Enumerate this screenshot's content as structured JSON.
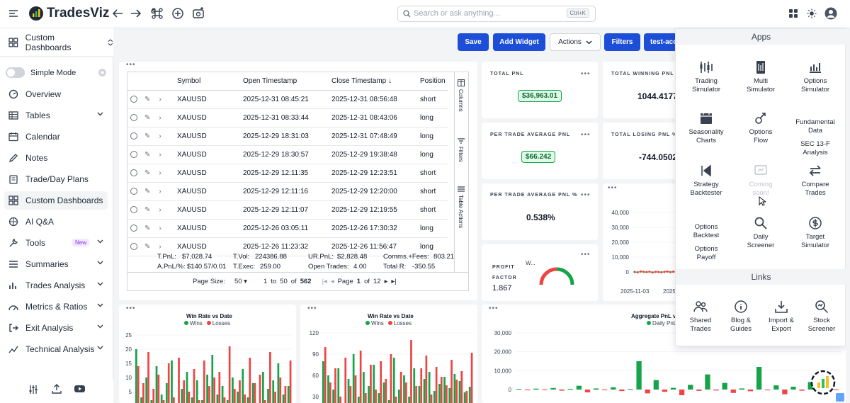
{
  "topbar": {
    "logo_text": "TradesViz",
    "search_placeholder": "Search or ask anything...",
    "search_shortcut": "Ctrl+K"
  },
  "dashboard": {
    "label": "Custom Dashboards"
  },
  "sidebar": {
    "simple_mode": "Simple Mode",
    "items": [
      {
        "label": "Overview",
        "icon": "overview-icon"
      },
      {
        "label": "Tables",
        "icon": "table-icon",
        "chevron": true
      },
      {
        "label": "Calendar",
        "icon": "calendar-icon"
      },
      {
        "label": "Notes",
        "icon": "notes-icon"
      },
      {
        "label": "Trade/Day Plans",
        "icon": "plans-icon"
      },
      {
        "label": "Custom Dashboards",
        "icon": "dashboard-icon",
        "active": true
      },
      {
        "label": "AI Q&A",
        "icon": "ai-icon"
      },
      {
        "label": "Tools",
        "icon": "tools-icon",
        "badge": "New",
        "chevron": true
      },
      {
        "label": "Summaries",
        "icon": "summaries-icon",
        "chevron": true
      },
      {
        "label": "Trades Analysis",
        "icon": "trades-analysis-icon",
        "chevron": true
      },
      {
        "label": "Metrics & Ratios",
        "icon": "metrics-icon",
        "chevron": true
      },
      {
        "label": "Exit Analysis",
        "icon": "exit-icon",
        "chevron": true
      },
      {
        "label": "Technical Analysis",
        "icon": "technical-icon",
        "chevron": true
      }
    ]
  },
  "toolbar": {
    "save": "Save",
    "add_widget": "Add Widget",
    "actions": "Actions",
    "filters": "Filters",
    "account": "test-acc"
  },
  "trades_table": {
    "columns": [
      "Symbol",
      "Open Timestamp",
      "Close Timestamp",
      "Position"
    ],
    "rows": [
      {
        "symbol": "XAUUSD",
        "open": "2025-12-31 08:45:21",
        "close": "2025-12-31 08:56:48",
        "position": "short"
      },
      {
        "symbol": "XAUUSD",
        "open": "2025-12-31 08:33:44",
        "close": "2025-12-31 08:43:06",
        "position": "long"
      },
      {
        "symbol": "XAUUSD",
        "open": "2025-12-29 18:31:03",
        "close": "2025-12-31 07:48:49",
        "position": "long"
      },
      {
        "symbol": "XAUUSD",
        "open": "2025-12-29 18:30:57",
        "close": "2025-12-29 19:38:48",
        "position": "long"
      },
      {
        "symbol": "XAUUSD",
        "open": "2025-12-29 12:11:35",
        "close": "2025-12-29 12:23:51",
        "position": "short"
      },
      {
        "symbol": "XAUUSD",
        "open": "2025-12-29 12:11:16",
        "close": "2025-12-29 12:20:00",
        "position": "short"
      },
      {
        "symbol": "XAUUSD",
        "open": "2025-12-29 12:11:07",
        "close": "2025-12-29 12:19:55",
        "position": "short"
      },
      {
        "symbol": "XAUUSD",
        "open": "2025-12-26 03:05:11",
        "close": "2025-12-26 17:30:32",
        "position": "long"
      },
      {
        "symbol": "XAUUSD",
        "open": "2025-12-26 11:23:32",
        "close": "2025-12-26 11:56:47",
        "position": "long"
      }
    ],
    "side_tabs": [
      "Columns",
      "Filters",
      "Table Actions"
    ],
    "summary": {
      "tpnl_label": "T.PnL:",
      "tpnl": "$7,028.74",
      "apnl_label": "A.PnL/%:",
      "apnl": "$140.57/0.01",
      "tvol_label": "T.Vol:",
      "tvol": "224386.88",
      "texec_label": "T.Exec:",
      "texec": "259.00",
      "urpnl_label": "UR.PnL:",
      "urpnl": "$2,828.48",
      "open_label": "Open Trades:",
      "open": "4.00",
      "comms_label": "Comms.+Fees:",
      "comms": "803.21",
      "totr_label": "Total R:",
      "totr": "-350.55"
    },
    "pager": {
      "page_size_label": "Page Size:",
      "page_size": "50",
      "range_a": "1",
      "range_to": "to",
      "range_b": "50",
      "range_of": "of",
      "total": "562",
      "page_label": "Page",
      "page": "1",
      "page_of": "of",
      "pages": "12"
    }
  },
  "kpis": {
    "total_pnl": {
      "title": "TOTAL PNL",
      "value": "$36,963.01"
    },
    "total_winning": {
      "title": "TOTAL WINNING PNL %",
      "value": "1044.4177"
    },
    "avg_pnl": {
      "title": "PER TRADE AVERAGE PNL",
      "value": "$66.242"
    },
    "total_losing": {
      "title": "TOTAL LOSING PNL %",
      "value": "-744.0502"
    },
    "avg_pnl_pct": {
      "title": "PER TRADE AVERAGE PNL %",
      "value": "0.538%"
    },
    "profit_factor": {
      "title1": "PROFIT",
      "title2": "FACTOR",
      "value": "1.867",
      "w": "W..."
    }
  },
  "apps_panel": {
    "apps_title": "Apps",
    "links_title": "Links",
    "apps": [
      {
        "l1": "Trading",
        "l2": "Simulator",
        "icon": "trading-simulator-icon"
      },
      {
        "l1": "Multi",
        "l2": "Simulator",
        "icon": "multi-simulator-icon"
      },
      {
        "l1": "Options",
        "l2": "Simulator",
        "icon": "options-simulator-icon"
      },
      {
        "l1": "Seasonality",
        "l2": "Charts",
        "icon": "seasonality-icon"
      },
      {
        "l1": "Options",
        "l2": "Flow",
        "icon": "options-flow-icon"
      },
      {
        "l1": "Fundamental",
        "l2": "Data",
        "l3": "SEC 13-F",
        "l4": "Analysis",
        "icon": ""
      },
      {
        "l1": "Strategy",
        "l2": "Backtester",
        "icon": "backtester-icon"
      },
      {
        "l1": "Coming",
        "l2": "soon!",
        "icon": "coming-soon-icon"
      },
      {
        "l1": "Compare",
        "l2": "Trades",
        "icon": "compare-icon"
      },
      {
        "l1": "Options",
        "l2": "Backtest",
        "l3": "Options",
        "l4": "Payoff",
        "icon": ""
      },
      {
        "l1": "Daily",
        "l2": "Screener",
        "icon": "daily-screener-icon"
      },
      {
        "l1": "Target",
        "l2": "Simulator",
        "icon": "target-simulator-icon"
      }
    ],
    "links": [
      {
        "l1": "Shared",
        "l2": "Trades",
        "icon": "shared-trades-icon"
      },
      {
        "l1": "Blog &",
        "l2": "Guides",
        "icon": "blog-icon"
      },
      {
        "l1": "Import &",
        "l2": "Export",
        "icon": "import-export-icon"
      },
      {
        "l1": "Stock",
        "l2": "Screener",
        "icon": "stock-screener-icon"
      }
    ]
  },
  "colors": {
    "win": "#16a34a",
    "loss": "#ef4444",
    "primary": "#1d4ed8"
  },
  "chart_data": [
    {
      "type": "bar",
      "title": "Win Rate vs Date",
      "legend": [
        "Wins",
        "Losses"
      ],
      "y_ticks": [
        "25",
        "20",
        "15",
        "10",
        "5"
      ],
      "series": [
        {
          "name": "Wins",
          "values": [
            20,
            3,
            10,
            2,
            14,
            4,
            8,
            16,
            1,
            6,
            12,
            3,
            9,
            2,
            11,
            18,
            4,
            7,
            2,
            10,
            5,
            13,
            3,
            8,
            1,
            12,
            6,
            9,
            15,
            4,
            7
          ]
        },
        {
          "name": "Losses",
          "values": [
            14,
            8,
            19,
            6,
            11,
            2,
            15,
            3,
            17,
            9,
            5,
            13,
            2,
            16,
            7,
            10,
            12,
            3,
            21,
            6,
            9,
            4,
            17,
            8,
            11,
            2,
            19,
            5,
            10,
            7,
            16
          ]
        }
      ]
    },
    {
      "type": "bar",
      "title": "Win Rate vs Date",
      "legend": [
        "Wins",
        "Losses"
      ],
      "y_ticks": [
        "120",
        "90",
        "60",
        "30"
      ],
      "series": [
        {
          "name": "Wins",
          "values": [
            80,
            60,
            40,
            70,
            20,
            55,
            90,
            30,
            65,
            45,
            75,
            35,
            50,
            25,
            85,
            40,
            60,
            30,
            70,
            45,
            55,
            65,
            38,
            48,
            58,
            42,
            62,
            52,
            36,
            44
          ]
        },
        {
          "name": "Losses",
          "values": [
            100,
            50,
            70,
            30,
            85,
            45,
            60,
            95,
            35,
            75,
            40,
            80,
            55,
            90,
            30,
            65,
            50,
            110,
            45,
            70,
            88,
            33,
            72,
            58,
            46,
            82,
            54,
            66,
            38,
            92
          ]
        }
      ]
    },
    {
      "type": "bar",
      "title": "Aggregate PnL vs",
      "legend": [
        "Daily PnL"
      ],
      "y_ticks": [
        "30,000",
        "20,000",
        "10,000",
        "0"
      ],
      "values": [
        200,
        -400,
        500,
        -300,
        800,
        -600,
        400,
        2000,
        -1500,
        600,
        -300,
        1200,
        -800,
        300,
        15000,
        -2000,
        5000,
        -1200,
        900,
        -3000,
        2500,
        -700,
        8000,
        -500,
        3500,
        -1800,
        600,
        -900,
        12000,
        -400,
        2200,
        -2500,
        1500,
        -600,
        4000,
        -1100,
        700,
        -300
      ]
    },
    {
      "type": "line",
      "x_ticks": [
        "2025-11-03",
        "2025"
      ],
      "y_ticks": [
        "40,000",
        "30,000",
        "20,000",
        "10,000",
        "0"
      ],
      "values": [
        0,
        -200,
        300,
        100,
        -100,
        200,
        -300,
        100,
        0,
        -200,
        100,
        300,
        -100,
        200,
        0
      ]
    }
  ]
}
